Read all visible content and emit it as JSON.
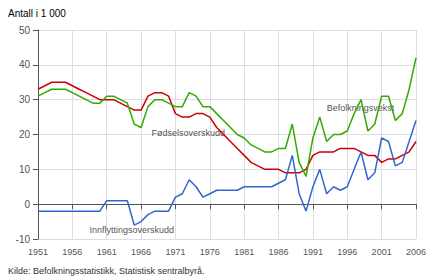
{
  "chart_data": {
    "type": "line",
    "y_label": "Antall i 1 000",
    "source": "Kilde: Befolkningsstatistikk, Statistisk sentralbyrå.",
    "x": [
      1951,
      1952,
      1953,
      1954,
      1955,
      1956,
      1957,
      1958,
      1959,
      1960,
      1961,
      1962,
      1963,
      1964,
      1965,
      1966,
      1967,
      1968,
      1969,
      1970,
      1971,
      1972,
      1973,
      1974,
      1975,
      1976,
      1977,
      1978,
      1979,
      1980,
      1981,
      1982,
      1983,
      1984,
      1985,
      1986,
      1987,
      1988,
      1989,
      1990,
      1991,
      1992,
      1993,
      1994,
      1995,
      1996,
      1997,
      1998,
      1999,
      2000,
      2001,
      2002,
      2003,
      2004,
      2005,
      2006
    ],
    "series": [
      {
        "name": "Fødselsoverskudd",
        "color": "#cc0000",
        "values": [
          33,
          34,
          35,
          35,
          35,
          34,
          33,
          32,
          31,
          30,
          30,
          30,
          29,
          28,
          27,
          27,
          31,
          32,
          32,
          31,
          26,
          25,
          25,
          26,
          26,
          25,
          22,
          20,
          18,
          16,
          14,
          12,
          11,
          10,
          10,
          10,
          9,
          9,
          9,
          10,
          14,
          15,
          15,
          15,
          16,
          16,
          16,
          15,
          14,
          14,
          12,
          13,
          13,
          14,
          15,
          18
        ]
      },
      {
        "name": "Innflyttingsoverskudd",
        "color": "#3366cc",
        "values": [
          -2,
          -2,
          -2,
          -2,
          -2,
          -2,
          -2,
          -2,
          -2,
          -2,
          1,
          1,
          1,
          1,
          -6,
          -5,
          -3,
          -2,
          -2,
          -2,
          2,
          3,
          7,
          5,
          2,
          3,
          4,
          4,
          4,
          4,
          5,
          5,
          5,
          5,
          5,
          6,
          7,
          14,
          3,
          -2,
          5,
          10,
          3,
          5,
          4,
          5,
          10,
          15,
          7,
          9,
          19,
          18,
          11,
          12,
          18,
          24
        ]
      },
      {
        "name": "Befolkningsvekst",
        "color": "#33aa00",
        "values": [
          31,
          32,
          33,
          33,
          33,
          32,
          31,
          30,
          29,
          29,
          31,
          31,
          30,
          29,
          23,
          22,
          28,
          30,
          30,
          29,
          28,
          28,
          32,
          31,
          28,
          28,
          26,
          24,
          22,
          20,
          19,
          17,
          16,
          15,
          15,
          16,
          16,
          23,
          12,
          8,
          19,
          25,
          18,
          20,
          20,
          21,
          26,
          30,
          21,
          23,
          31,
          31,
          24,
          26,
          33,
          42
        ]
      }
    ],
    "annotations": [
      {
        "text": "Fødselsoverskudd",
        "x": 1967.5,
        "y": 20.5
      },
      {
        "text": "Innflyttingsoverskudd",
        "x": 1958.5,
        "y": -7.5
      },
      {
        "text": "Befolkningsvekst",
        "x": 1993,
        "y": 27.5
      }
    ],
    "xlim": [
      1951,
      2006
    ],
    "xticks": [
      1951,
      1956,
      1961,
      1966,
      1971,
      1976,
      1981,
      1986,
      1991,
      1996,
      2001,
      2006
    ],
    "ylim": [
      -10,
      50
    ],
    "yticks": [
      -10,
      0,
      10,
      20,
      30,
      40,
      50
    ],
    "grid": true
  }
}
